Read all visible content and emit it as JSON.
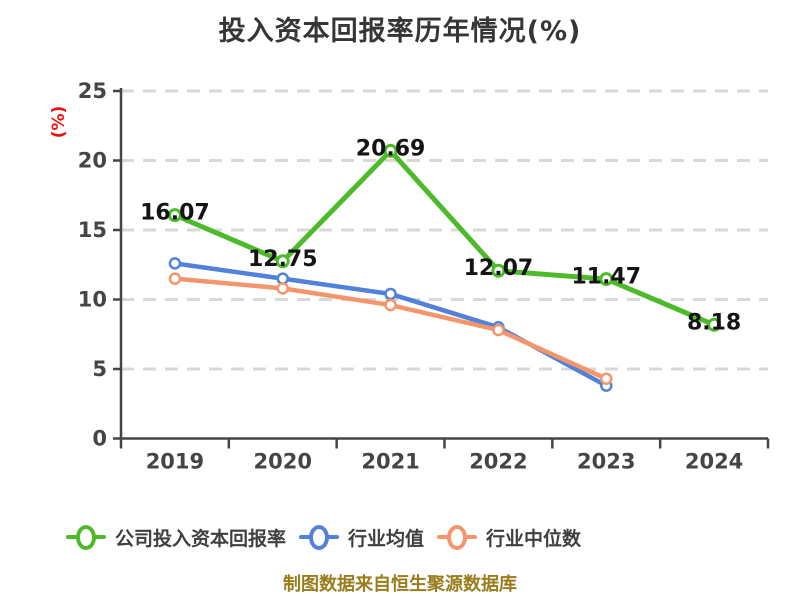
{
  "chart_data": {
    "type": "line",
    "title": "投入资本回报率历年情况(%)",
    "ylabel": "(%)",
    "xlabel": "",
    "categories": [
      "2019",
      "2020",
      "2021",
      "2022",
      "2023",
      "2024"
    ],
    "ylim": [
      0,
      25
    ],
    "yticks": [
      0,
      5,
      10,
      15,
      20,
      25
    ],
    "grid": "horizontal-dashed",
    "legend_position": "bottom",
    "series": [
      {
        "name": "公司投入资本回报率",
        "color": "#4dbb29",
        "values": [
          16.07,
          12.75,
          20.69,
          12.07,
          11.47,
          8.18
        ],
        "labels": [
          "16.07",
          "12.75",
          "20.69",
          "12.07",
          "11.47",
          "8.18"
        ],
        "show_labels": true
      },
      {
        "name": "行业均值",
        "color": "#5181d8",
        "values": [
          12.6,
          11.5,
          10.4,
          8.0,
          3.8
        ],
        "show_labels": false
      },
      {
        "name": "行业中位数",
        "color": "#f4956c",
        "values": [
          11.5,
          10.8,
          9.6,
          7.8,
          4.3
        ],
        "show_labels": false
      }
    ]
  },
  "footer": {
    "text": "制图数据来自恒生聚源数据库",
    "color": "#9a7c1c"
  },
  "style_colors": {
    "axis": "#454545",
    "tick_label": "#454545",
    "gridline": "#d8d8d8",
    "data_label": "#141414",
    "title": "#363636",
    "y_unit": "#ee0e0e"
  }
}
